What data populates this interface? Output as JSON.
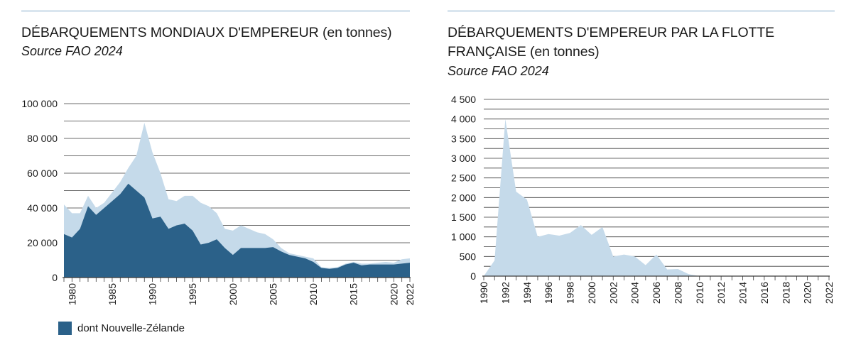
{
  "charts": {
    "left": {
      "title": "DÉBARQUEMENTS MONDIAUX D'EMPEREUR (en tonnes)",
      "source": "Source FAO 2024"
    },
    "right": {
      "title_line1": "DÉBARQUEMENTS D'EMPEREUR PAR LA FLOTTE",
      "title_line2": "FRANÇAISE (en tonnes)",
      "source": "Source FAO 2024"
    }
  },
  "legend": {
    "label": "dont Nouvelle-Zélande",
    "color": "#2b6189"
  },
  "colors": {
    "total_area": "#c5daea",
    "nz_area": "#2b6189",
    "grid": "#3a3a3a",
    "rule": "#7fa8c8"
  },
  "chart_data": [
    {
      "type": "area",
      "title": "DÉBARQUEMENTS MONDIAUX D'EMPEREUR (en tonnes)",
      "subtitle": "Source FAO 2024",
      "ylim": [
        0,
        100000
      ],
      "y_ticks": [
        "0",
        "20 000",
        "40 000",
        "60 000",
        "80 000",
        "100 000"
      ],
      "x_ticks": [
        "1980",
        "1985",
        "1990",
        "1995",
        "2000",
        "2005",
        "2010",
        "2015",
        "2020",
        "2022"
      ],
      "x": [
        1979,
        1980,
        1981,
        1982,
        1983,
        1984,
        1985,
        1986,
        1987,
        1988,
        1989,
        1990,
        1991,
        1992,
        1993,
        1994,
        1995,
        1996,
        1997,
        1998,
        1999,
        2000,
        2001,
        2002,
        2003,
        2004,
        2005,
        2006,
        2007,
        2008,
        2009,
        2010,
        2011,
        2012,
        2013,
        2014,
        2015,
        2016,
        2017,
        2018,
        2019,
        2020,
        2021,
        2022
      ],
      "series": [
        {
          "values": [
            42000,
            37000,
            37000,
            47000,
            40000,
            43000,
            49000,
            55000,
            63000,
            70000,
            89000,
            72000,
            60000,
            45000,
            44000,
            47000,
            47000,
            43000,
            41000,
            37000,
            28000,
            27000,
            30000,
            28000,
            26000,
            25000,
            22000,
            17000,
            14000,
            13000,
            12000,
            11000,
            6000,
            5500,
            6000,
            8000,
            9000,
            8000,
            8000,
            8500,
            9000,
            8500,
            10500,
            11000
          ]
        },
        {
          "name": "dont Nouvelle-Zélande",
          "values": [
            25000,
            23000,
            28000,
            41000,
            36000,
            40000,
            44000,
            48000,
            54000,
            50000,
            46000,
            34000,
            35000,
            28000,
            30000,
            31000,
            27000,
            19000,
            20000,
            22000,
            17000,
            13000,
            17000,
            17000,
            17000,
            17000,
            17500,
            15000,
            13000,
            12000,
            11000,
            9000,
            5500,
            5000,
            5500,
            7500,
            8500,
            7000,
            7500,
            7500,
            7500,
            7500,
            8000,
            8500
          ]
        }
      ]
    },
    {
      "type": "area",
      "title": "DÉBARQUEMENTS D'EMPEREUR PAR LA FLOTTE FRANÇAISE (en tonnes)",
      "subtitle": "Source FAO 2024",
      "ylim": [
        0,
        4500
      ],
      "y_ticks": [
        "0",
        "500",
        "1 000",
        "1 500",
        "2 000",
        "2 500",
        "3 000",
        "3 500",
        "4 000",
        "4 500"
      ],
      "x_ticks": [
        "1990",
        "1992",
        "1994",
        "1996",
        "1998",
        "2000",
        "2002",
        "2004",
        "2006",
        "2008",
        "2010",
        "2012",
        "2014",
        "2016",
        "2018",
        "2020",
        "2022"
      ],
      "x": [
        1990,
        1991,
        1992,
        1993,
        1994,
        1995,
        1996,
        1997,
        1998,
        1999,
        2000,
        2001,
        2002,
        2003,
        2004,
        2005,
        2006,
        2007,
        2008,
        2009,
        2010,
        2011,
        2012,
        2013,
        2014,
        2015,
        2016,
        2017,
        2018,
        2019,
        2020,
        2021,
        2022
      ],
      "series": [
        {
          "values": [
            0,
            400,
            4000,
            2150,
            1950,
            1000,
            1070,
            1030,
            1100,
            1300,
            1050,
            1250,
            500,
            550,
            500,
            280,
            550,
            170,
            180,
            50,
            0,
            0,
            0,
            0,
            0,
            0,
            0,
            0,
            0,
            0,
            0,
            0,
            0
          ]
        }
      ]
    }
  ]
}
